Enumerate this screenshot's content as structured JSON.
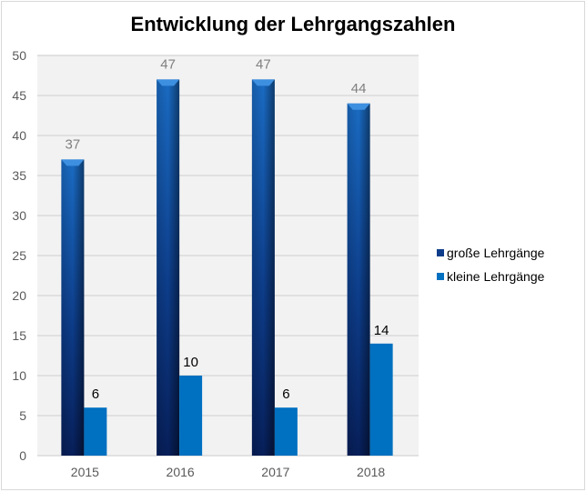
{
  "chart_data": {
    "type": "bar",
    "title": "Entwicklung der Lehrgangszahlen",
    "xlabel": "",
    "ylabel": "",
    "categories": [
      "2015",
      "2016",
      "2017",
      "2018"
    ],
    "ylim": [
      0,
      50
    ],
    "yticks": [
      "0",
      "5",
      "10",
      "15",
      "20",
      "25",
      "30",
      "35",
      "40",
      "45",
      "50"
    ],
    "grid": true,
    "legend_position": "right",
    "series": [
      {
        "name": "große Lehrgänge",
        "values": [
          37,
          47,
          47,
          44
        ],
        "color": "#1f4e9a"
      },
      {
        "name": "kleine Lehrgänge",
        "values": [
          6,
          10,
          6,
          14
        ],
        "color": "#0070c0"
      }
    ]
  }
}
